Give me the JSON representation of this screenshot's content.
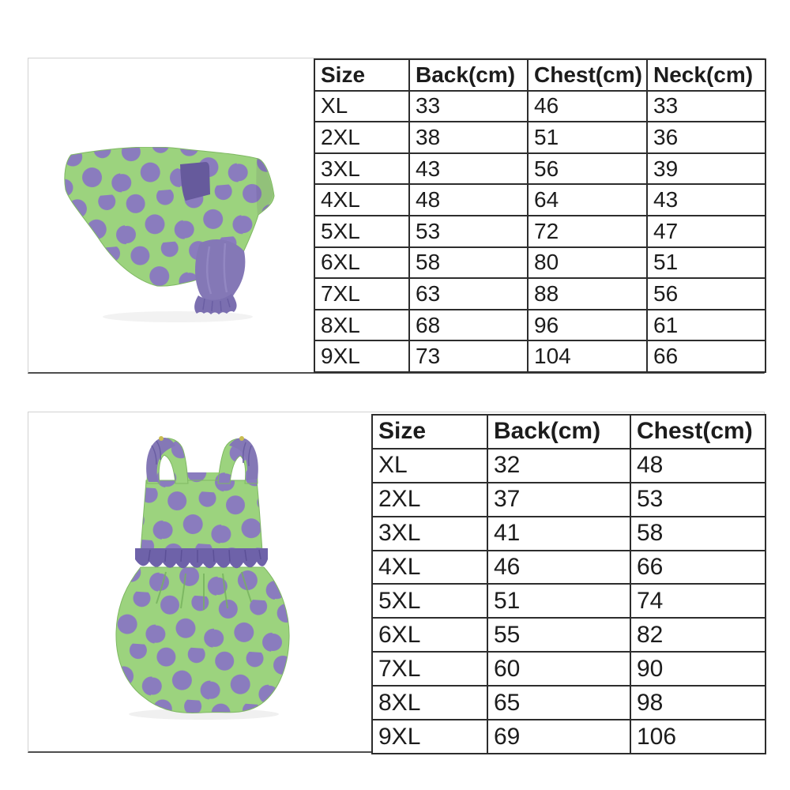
{
  "page": {
    "background_color": "#ffffff",
    "description": "Pet clothing size specification sheet with two garments and measurement tables"
  },
  "colors": {
    "fabric_green": "#9cd37e",
    "dot_purple": "#8a7cbe",
    "sleeve_purple": "#8478b6",
    "cuff_purple": "#7b6fb0",
    "pocket_purple": "#665a9c",
    "ruffle_purple": "#6e62a9",
    "table_border": "#2d2d2d",
    "panel_border": "#d2d2d2",
    "panel_border_bottom": "#4e4e4e",
    "text_color": "#1c1c1c"
  },
  "products": [
    {
      "name": "polka-dot-dog-coat",
      "description": "Green dog coat with purple polka dots, purple pocket patch and purple gathered sleeve"
    },
    {
      "name": "polka-dot-dog-dress",
      "description": "Green bubble dress with purple polka dots, shoulder straps and purple waist ruffle"
    }
  ],
  "tables": [
    {
      "name": "coat-size-chart",
      "headers": [
        "Size",
        "Back(cm)",
        "Chest(cm)",
        "Neck(cm)"
      ],
      "rows": [
        [
          "XL",
          "33",
          "46",
          "33"
        ],
        [
          "2XL",
          "38",
          "51",
          "36"
        ],
        [
          "3XL",
          "43",
          "56",
          "39"
        ],
        [
          "4XL",
          "48",
          "64",
          "43"
        ],
        [
          "5XL",
          "53",
          "72",
          "47"
        ],
        [
          "6XL",
          "58",
          "80",
          "51"
        ],
        [
          "7XL",
          "63",
          "88",
          "56"
        ],
        [
          "8XL",
          "68",
          "96",
          "61"
        ],
        [
          "9XL",
          "73",
          "104",
          "66"
        ]
      ]
    },
    {
      "name": "dress-size-chart",
      "headers": [
        "Size",
        "Back(cm)",
        "Chest(cm)"
      ],
      "rows": [
        [
          "XL",
          "32",
          "48"
        ],
        [
          "2XL",
          "37",
          "53"
        ],
        [
          "3XL",
          "41",
          "58"
        ],
        [
          "4XL",
          "46",
          "66"
        ],
        [
          "5XL",
          "51",
          "74"
        ],
        [
          "6XL",
          "55",
          "82"
        ],
        [
          "7XL",
          "60",
          "90"
        ],
        [
          "8XL",
          "65",
          "98"
        ],
        [
          "9XL",
          "69",
          "106"
        ]
      ]
    }
  ]
}
